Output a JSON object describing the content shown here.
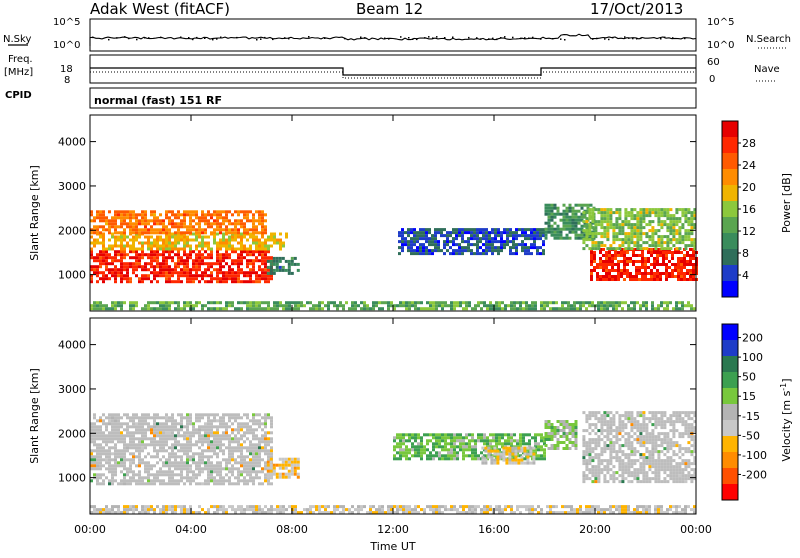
{
  "header": {
    "station": "Adak West (fitACF)",
    "beam": "Beam 12",
    "date": "17/Oct/2013"
  },
  "strip_panels": {
    "sky_label": "N.Sky",
    "sky_ticks": [
      "10^5",
      "10^0"
    ],
    "search_label": "N.Search",
    "search_ticks": [
      "10^5",
      "10^0"
    ],
    "freq_label_1": "Freq.",
    "freq_label_2": "[MHz]",
    "freq_ticks": [
      "18",
      "8"
    ],
    "nave_label": "Nave",
    "nave_ticks": [
      "60",
      "0"
    ],
    "cpid_label": "CPID",
    "cpid_text": "normal (fast) 151 RF"
  },
  "colors": {
    "power_scale": [
      "#0000ff",
      "#1e3cc8",
      "#2f6e5a",
      "#3a8c5c",
      "#5aa550",
      "#8cc83c",
      "#f0b400",
      "#ff8c00",
      "#ff5a00",
      "#ff2800",
      "#e60000"
    ],
    "velocity_scale": [
      "#ff0000",
      "#ff5000",
      "#ff8c00",
      "#ffb400",
      "#c8c8c8",
      "#b4b4b4",
      "#78c83c",
      "#3ca050",
      "#2a7850",
      "#1e3cc8",
      "#0000ff"
    ],
    "ground_scatter": "#bdbdbd"
  },
  "chart_data": [
    {
      "type": "heatmap",
      "name": "power",
      "xlabel": "",
      "ylabel": "Slant Range [km]",
      "xlim": [
        "00:00",
        "24:00"
      ],
      "ylim": [
        180,
        4600
      ],
      "yticks": [
        1000,
        2000,
        3000,
        4000
      ],
      "colorbar_label": "Power [dB]",
      "colorbar_ticks": [
        "28",
        "24",
        "20",
        "16",
        "12",
        "8",
        "4"
      ],
      "clim": [
        0,
        30
      ],
      "regions": [
        {
          "t0": 0.0,
          "t1": 7.2,
          "r0": 850,
          "r1": 1550,
          "value": 27
        },
        {
          "t0": 0.0,
          "t1": 7.8,
          "r0": 1550,
          "r1": 1950,
          "value": 18
        },
        {
          "t0": 0.0,
          "t1": 7.0,
          "r0": 1950,
          "r1": 2450,
          "value": 22
        },
        {
          "t0": 7.0,
          "t1": 8.3,
          "r0": 1000,
          "r1": 1400,
          "value": 8
        },
        {
          "t0": 12.2,
          "t1": 18.0,
          "r0": 1500,
          "r1": 2050,
          "value": 5
        },
        {
          "t0": 18.0,
          "t1": 20.0,
          "r0": 1800,
          "r1": 2600,
          "value": 10
        },
        {
          "t0": 19.8,
          "t1": 24.0,
          "r0": 900,
          "r1": 1600,
          "value": 27
        },
        {
          "t0": 19.5,
          "t1": 24.0,
          "r0": 1600,
          "r1": 2500,
          "value": 14
        },
        {
          "t0": 0.0,
          "t1": 24.0,
          "r0": 200,
          "r1": 400,
          "value": 12
        }
      ]
    },
    {
      "type": "heatmap",
      "name": "velocity",
      "xlabel": "Time UT",
      "ylabel": "Slant Range [km]",
      "xlim": [
        "00:00",
        "24:00"
      ],
      "ylim": [
        180,
        4600
      ],
      "xticks": [
        "00:00",
        "04:00",
        "08:00",
        "12:00",
        "16:00",
        "20:00",
        "00:00"
      ],
      "yticks": [
        1000,
        2000,
        3000,
        4000
      ],
      "colorbar_label": "Velocity [m s^-1]",
      "colorbar_ticks": [
        "200",
        "100",
        "50",
        "15",
        "-15",
        "-50",
        "-100",
        "-200"
      ],
      "clim": [
        -250,
        250
      ],
      "regions": [
        {
          "t0": 0.0,
          "t1": 7.2,
          "r0": 850,
          "r1": 2450,
          "value": 0,
          "ground_scatter": true
        },
        {
          "t0": 7.0,
          "t1": 8.2,
          "r0": 1000,
          "r1": 1450,
          "value": -80
        },
        {
          "t0": 12.0,
          "t1": 18.0,
          "r0": 1400,
          "r1": 2000,
          "value": 60
        },
        {
          "t0": 15.5,
          "t1": 17.6,
          "r0": 1350,
          "r1": 1700,
          "value": -50
        },
        {
          "t0": 18.0,
          "t1": 19.2,
          "r0": 1650,
          "r1": 2300,
          "value": 30
        },
        {
          "t0": 19.5,
          "t1": 24.0,
          "r0": 900,
          "r1": 2500,
          "value": 0,
          "ground_scatter": true
        },
        {
          "t0": 0.0,
          "t1": 24.0,
          "r0": 200,
          "r1": 380,
          "value": -40
        }
      ]
    }
  ]
}
